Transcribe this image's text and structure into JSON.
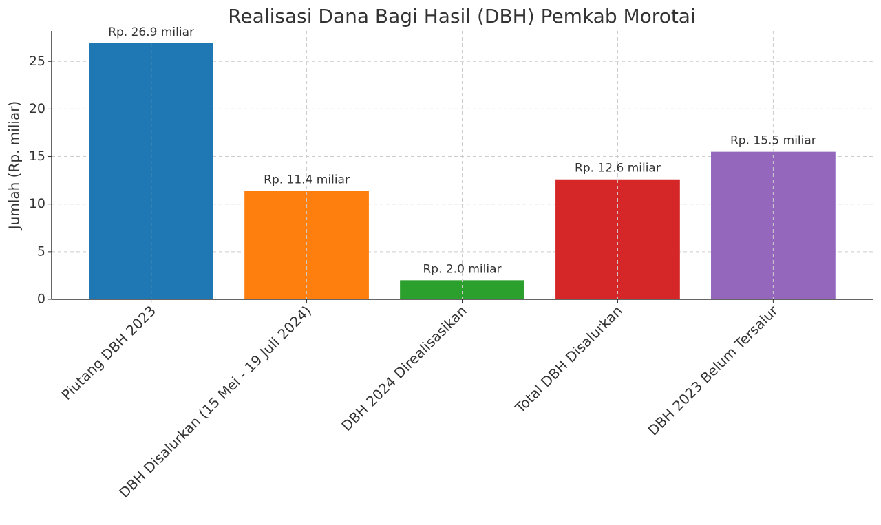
{
  "chart_data": {
    "type": "bar",
    "title": "Realisasi Dana Bagi Hasil (DBH) Pemkab Morotai",
    "ylabel": "Jumlah (Rp. miliar)",
    "categories": [
      "Piutang DBH 2023",
      "DBH Disalurkan (15 Mei - 19 Juli 2024)",
      "DBH 2024 Direalisasikan",
      "Total DBH Disalurkan",
      "DBH 2023 Belum Tersalur"
    ],
    "values": [
      26.9,
      11.4,
      2.0,
      12.6,
      15.5
    ],
    "value_labels": [
      "Rp. 26.9 miliar",
      "Rp. 11.4 miliar",
      "Rp. 2.0 miliar",
      "Rp. 12.6 miliar",
      "Rp. 15.5 miliar"
    ],
    "colors": [
      "#1f77b4",
      "#ff7f0e",
      "#2ca02c",
      "#d62728",
      "#9467bd"
    ],
    "ylim": [
      0,
      28.2
    ],
    "yticks": [
      0,
      5,
      10,
      15,
      20,
      25
    ],
    "grid": true
  }
}
